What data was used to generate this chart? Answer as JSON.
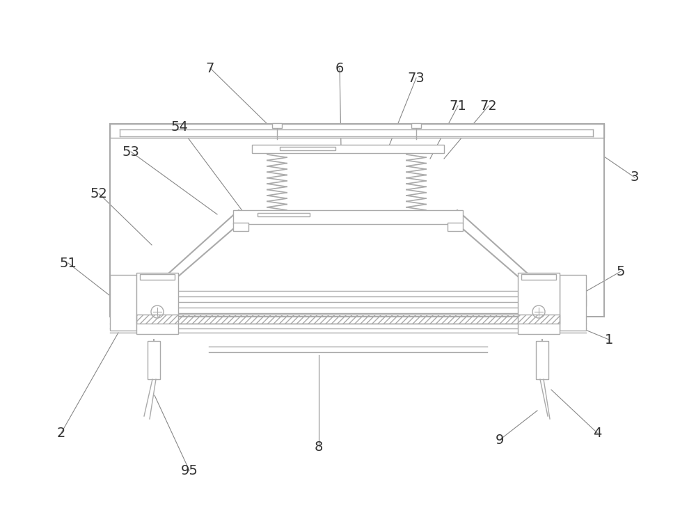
{
  "bg_color": "#ffffff",
  "lc": "#aaaaaa",
  "dc": "#888888",
  "label_color": "#333333",
  "label_fs": 14,
  "fig_width": 10.0,
  "fig_height": 7.3,
  "labels_data": [
    [
      "1",
      875,
      488,
      812,
      462
    ],
    [
      "2",
      88,
      622,
      170,
      478
    ],
    [
      "3",
      912,
      255,
      868,
      225
    ],
    [
      "4",
      858,
      622,
      792,
      560
    ],
    [
      "5",
      892,
      390,
      808,
      438
    ],
    [
      "6",
      488,
      98,
      490,
      212
    ],
    [
      "7",
      302,
      98,
      388,
      182
    ],
    [
      "8",
      458,
      642,
      458,
      510
    ],
    [
      "9",
      718,
      632,
      772,
      590
    ],
    [
      "51",
      98,
      378,
      162,
      428
    ],
    [
      "52",
      142,
      278,
      218,
      352
    ],
    [
      "53",
      188,
      218,
      312,
      308
    ],
    [
      "54",
      258,
      182,
      352,
      308
    ],
    [
      "71",
      658,
      152,
      618,
      228
    ],
    [
      "72",
      702,
      152,
      638,
      228
    ],
    [
      "73",
      598,
      112,
      558,
      212
    ],
    [
      "95",
      272,
      676,
      222,
      568
    ]
  ]
}
